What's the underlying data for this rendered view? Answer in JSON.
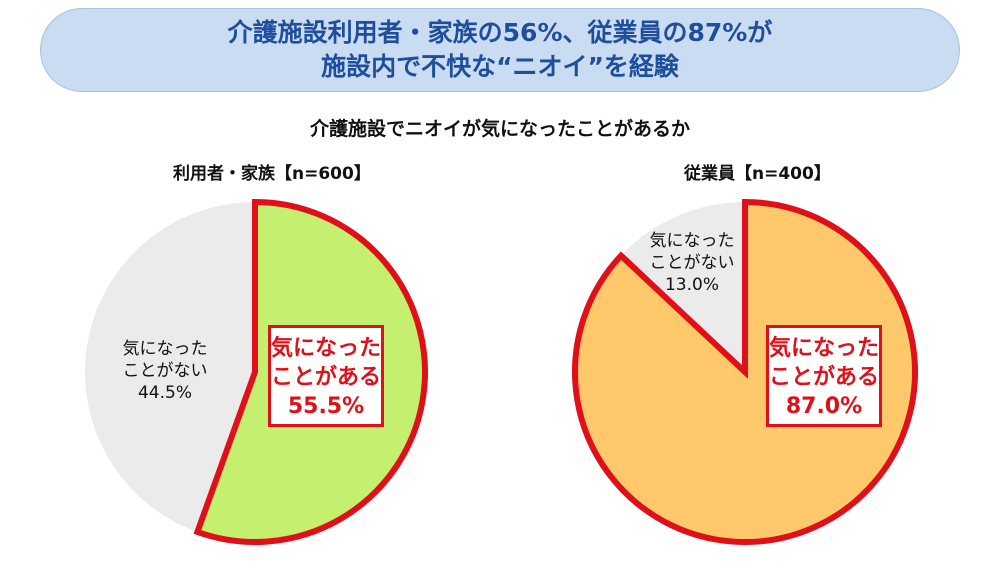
{
  "banner": {
    "line1": "介護施設利用者・家族の56%、従業員の87%が",
    "line2": "施設内で不快な“ニオイ”を経験"
  },
  "subtitle": "介護施設でニオイが気になったことがあるか",
  "chart_data": [
    {
      "type": "pie",
      "title": "利用者・家族【n=600】",
      "categories": [
        "気になったことがある",
        "気になったことがない"
      ],
      "values": [
        55.5,
        44.5
      ],
      "labels": [
        {
          "line1": "気になった",
          "line2": "ことがある",
          "value": "55.5%"
        },
        {
          "line1": "気になった",
          "line2": "ことがない",
          "value": "44.5%"
        }
      ],
      "colors": [
        "#c5ef6e",
        "#ebebeb"
      ],
      "highlight_color": "#e0101a"
    },
    {
      "type": "pie",
      "title": "従業員【n=400】",
      "categories": [
        "気になったことがある",
        "気になったことがない"
      ],
      "values": [
        87.0,
        13.0
      ],
      "labels": [
        {
          "line1": "気になった",
          "line2": "ことがある",
          "value": "87.0%"
        },
        {
          "line1": "気になった",
          "line2": "ことがない",
          "value": "13.0%"
        }
      ],
      "colors": [
        "#ffc96b",
        "#ebebeb"
      ],
      "highlight_color": "#e0101a"
    }
  ]
}
